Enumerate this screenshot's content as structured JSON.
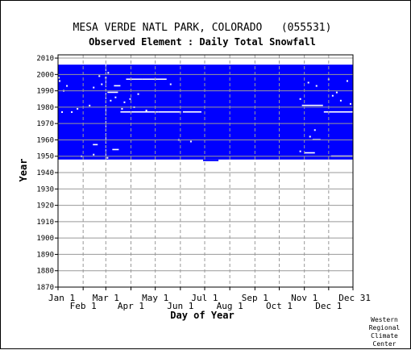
{
  "chart_data": {
    "type": "heatmap",
    "title": "MESA VERDE NATL PARK, COLORADO   (055531)",
    "subtitle": "Observed Element : Daily Total Snowfall",
    "xlabel": "Day of Year",
    "ylabel": "Year",
    "xlim": [
      1,
      365
    ],
    "ylim": [
      1870,
      2012
    ],
    "x_ticks_top_row": [
      "Jan 1",
      "Mar 1",
      "May 1",
      "Jul 1",
      "Sep 1",
      "Nov 1",
      "Dec 31"
    ],
    "x_ticks_bottom_row": [
      "Feb 1",
      "Apr 1",
      "Jun 1",
      "Aug 1",
      "Oct 1",
      "Dec 1"
    ],
    "x_tick_days": [
      1,
      32,
      60,
      91,
      121,
      152,
      182,
      213,
      244,
      274,
      305,
      335,
      365
    ],
    "y_ticks": [
      1870,
      1880,
      1890,
      1900,
      1910,
      1920,
      1930,
      1940,
      1950,
      1960,
      1970,
      1980,
      1990,
      2000,
      2010
    ],
    "data_color": "#0000ff",
    "missing_color": "#ffffff",
    "data_blocks": [
      {
        "day_start": 1,
        "day_end": 365,
        "year_start": 1948,
        "year_end": 2006
      },
      {
        "day_start": 180,
        "day_end": 199,
        "year_start": 1947,
        "year_end": 1948
      }
    ],
    "missing_segments": [
      {
        "day_start": 78,
        "day_end": 125,
        "year": 1977
      },
      {
        "day_start": 125,
        "day_end": 153,
        "year": 1977
      },
      {
        "day_start": 155,
        "day_end": 178,
        "year": 1977
      },
      {
        "day_start": 302,
        "day_end": 328,
        "year": 1981
      },
      {
        "day_start": 329,
        "day_end": 365,
        "year": 1977
      },
      {
        "day_start": 338,
        "day_end": 365,
        "year": 1950
      },
      {
        "day_start": 305,
        "day_end": 318,
        "year": 1952
      },
      {
        "day_start": 62,
        "day_end": 75,
        "year": 1989
      },
      {
        "day_start": 85,
        "day_end": 105,
        "year": 1997
      },
      {
        "day_start": 105,
        "day_end": 135,
        "year": 1997
      },
      {
        "day_start": 70,
        "day_end": 78,
        "year": 1993
      },
      {
        "day_start": 68,
        "day_end": 76,
        "year": 1954
      },
      {
        "day_start": 44,
        "day_end": 50,
        "year": 1957
      },
      {
        "day_start": 315,
        "day_end": 325,
        "year": 1960
      }
    ],
    "missing_dots": [
      [
        2,
        1998
      ],
      [
        3,
        1996
      ],
      [
        8,
        1990
      ],
      [
        12,
        1993
      ],
      [
        6,
        1977
      ],
      [
        18,
        1977
      ],
      [
        25,
        1979
      ],
      [
        40,
        1981
      ],
      [
        45,
        1992
      ],
      [
        52,
        1999
      ],
      [
        55,
        1994
      ],
      [
        60,
        1998
      ],
      [
        63,
        2001
      ],
      [
        66,
        1984
      ],
      [
        72,
        1986
      ],
      [
        80,
        1979
      ],
      [
        83,
        1983
      ],
      [
        90,
        1985
      ],
      [
        95,
        1980
      ],
      [
        100,
        1988
      ],
      [
        110,
        1978
      ],
      [
        140,
        1994
      ],
      [
        150,
        1960
      ],
      [
        165,
        1959
      ],
      [
        300,
        1985
      ],
      [
        310,
        1995
      ],
      [
        320,
        1993
      ],
      [
        335,
        1997
      ],
      [
        345,
        1989
      ],
      [
        350,
        1984
      ],
      [
        358,
        1996
      ],
      [
        362,
        1982
      ],
      [
        312,
        1962
      ],
      [
        318,
        1966
      ],
      [
        300,
        1953
      ],
      [
        340,
        1987
      ],
      [
        30,
        1950
      ],
      [
        45,
        1951
      ],
      [
        62,
        1949
      ]
    ],
    "gap_column_day": 60,
    "grid": true
  },
  "credit": {
    "line1": "Western",
    "line2": "Regional",
    "line3": "Climate",
    "line4": "Center"
  }
}
